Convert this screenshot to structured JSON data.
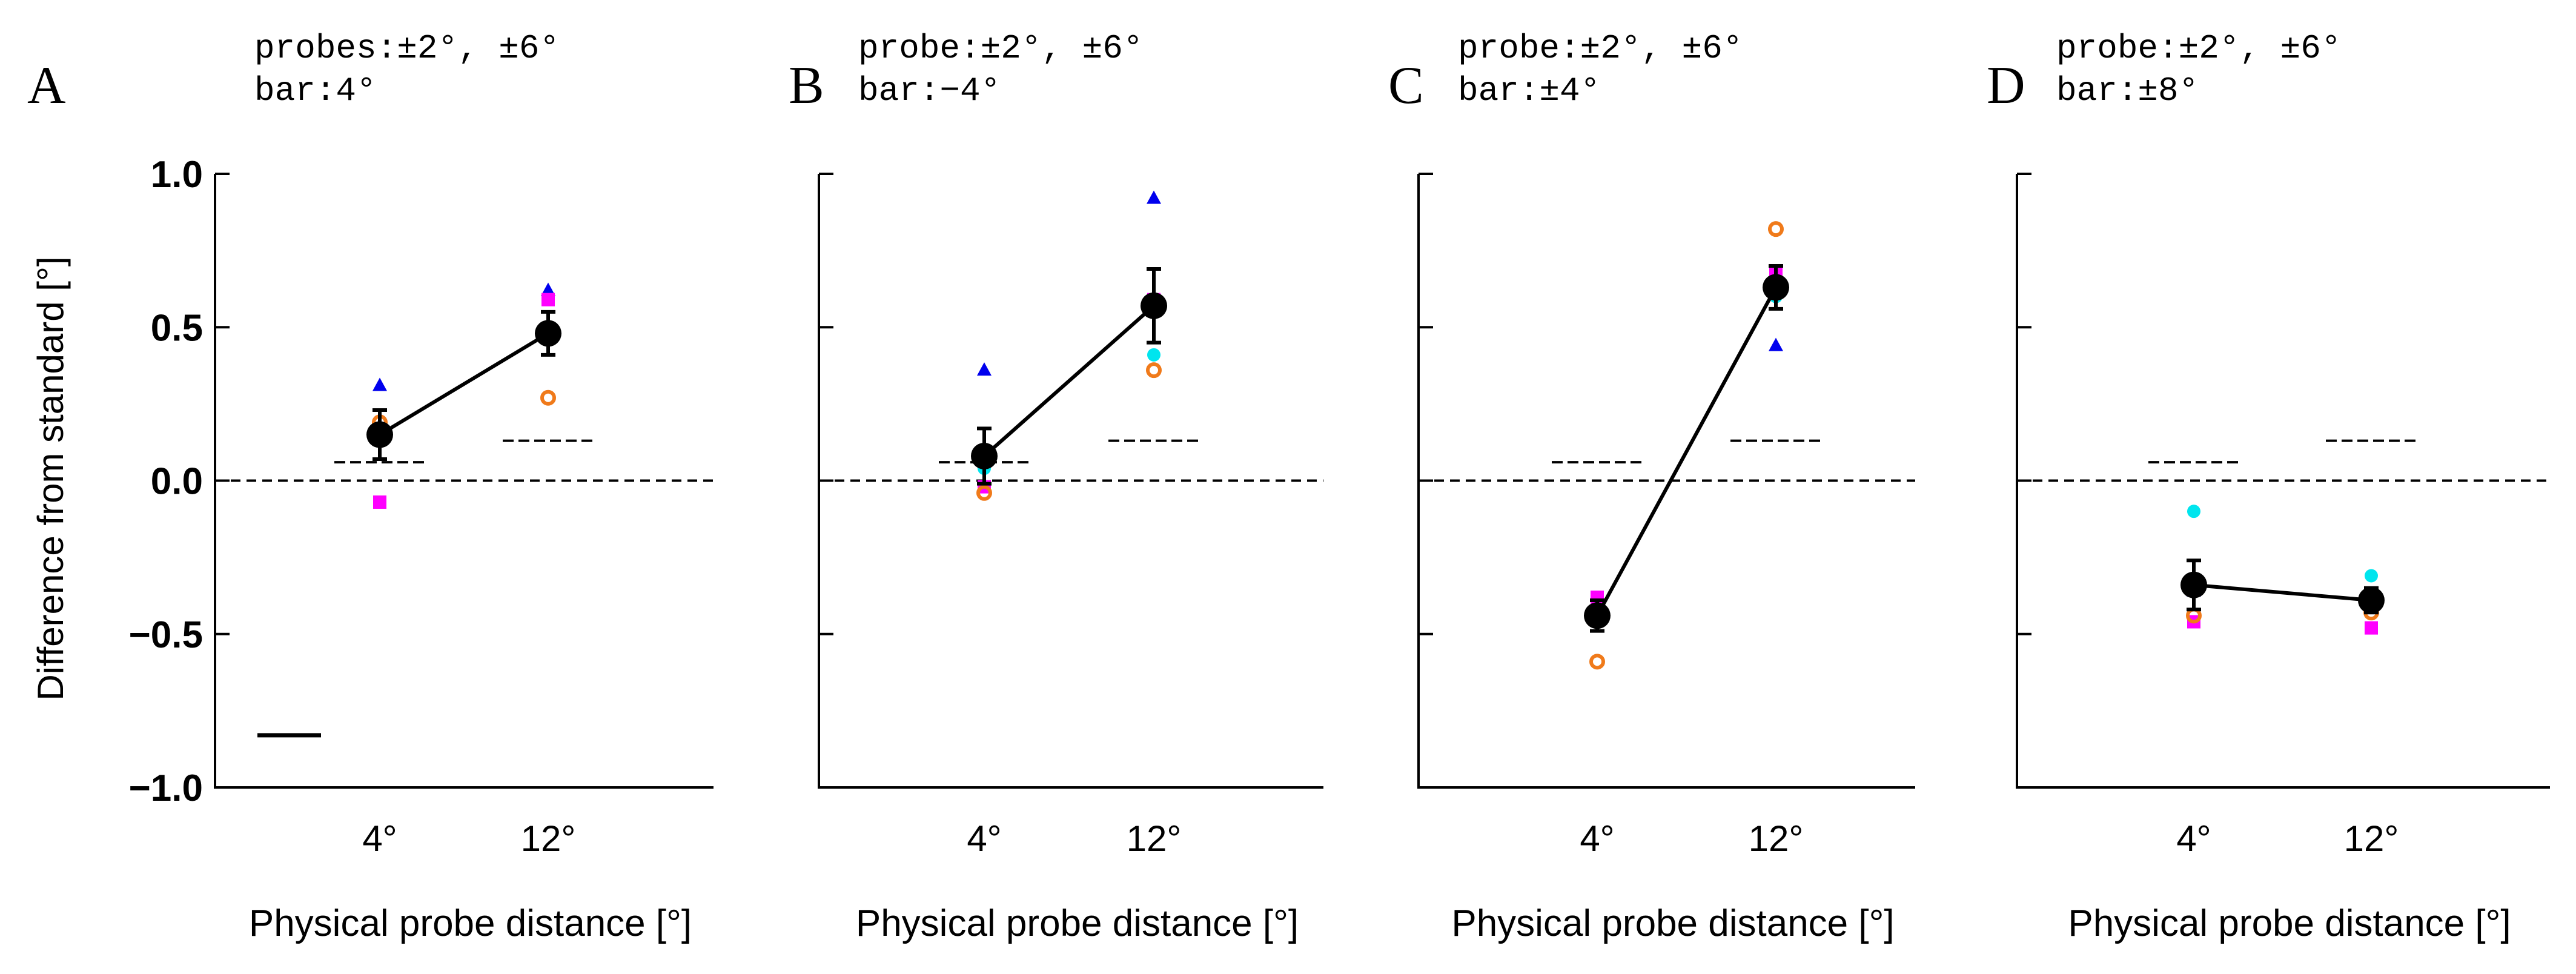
{
  "colors": {
    "mean": "#000000",
    "blue": "#0000ee",
    "cyan": "#00e5ee",
    "magenta": "#ff00ff",
    "orange": "#f07a1a",
    "axis": "#000000"
  },
  "y_axis": {
    "label": "Difference from standard [°]",
    "ticks": [
      1.0,
      0.5,
      0.0,
      -0.5,
      -1.0
    ],
    "tick_labels": [
      "1.0",
      "0.5",
      "0.0",
      "−0.5",
      "−1.0"
    ]
  },
  "chart_data": [
    {
      "type": "scatter",
      "panel": "A",
      "annotation": [
        "probes:±2°, ±6°",
        "bar:4°"
      ],
      "categories": [
        "4°",
        "12°"
      ],
      "xlabel": "Physical probe distance [°]",
      "ylabel": "Difference from standard [°]",
      "ylim": [
        -1.0,
        1.0
      ],
      "mean": [
        0.15,
        0.48
      ],
      "error": [
        0.08,
        0.07
      ],
      "reference": [
        0.06,
        0.13
      ],
      "series": [
        {
          "name": "blue triangle",
          "values": [
            0.31,
            0.62
          ]
        },
        {
          "name": "cyan circle",
          "values": [
            0.15,
            0.46
          ]
        },
        {
          "name": "magenta square",
          "values": [
            -0.07,
            0.59
          ]
        },
        {
          "name": "orange open circle",
          "values": [
            0.19,
            0.27
          ]
        }
      ],
      "scale_bar_y": -0.83
    },
    {
      "type": "scatter",
      "panel": "B",
      "annotation": [
        "probe:±2°, ±6°",
        "bar:−4°"
      ],
      "categories": [
        "4°",
        "12°"
      ],
      "xlabel": "Physical probe distance [°]",
      "ylabel": "",
      "ylim": [
        -1.0,
        1.0
      ],
      "mean": [
        0.08,
        0.57
      ],
      "error": [
        0.09,
        0.12
      ],
      "reference": [
        0.06,
        0.13
      ],
      "series": [
        {
          "name": "blue triangle",
          "values": [
            0.36,
            0.92
          ]
        },
        {
          "name": "cyan circle",
          "values": [
            0.04,
            0.41
          ]
        },
        {
          "name": "magenta square",
          "values": [
            -0.02,
            0.59
          ]
        },
        {
          "name": "orange open circle",
          "values": [
            -0.04,
            0.36
          ]
        }
      ]
    },
    {
      "type": "scatter",
      "panel": "C",
      "annotation": [
        "probe:±2°, ±6°",
        "bar:±4°"
      ],
      "categories": [
        "4°",
        "12°"
      ],
      "xlabel": "Physical probe distance [°]",
      "ylabel": "",
      "ylim": [
        -1.0,
        1.0
      ],
      "mean": [
        -0.44,
        0.63
      ],
      "error": [
        0.05,
        0.07
      ],
      "reference": [
        0.06,
        0.13
      ],
      "series": [
        {
          "name": "blue triangle",
          "values": [
            -0.41,
            0.44
          ]
        },
        {
          "name": "cyan circle",
          "values": [
            -0.39,
            0.6
          ]
        },
        {
          "name": "magenta square",
          "values": [
            -0.38,
            0.68
          ]
        },
        {
          "name": "orange open circle",
          "values": [
            -0.59,
            0.82
          ]
        }
      ]
    },
    {
      "type": "scatter",
      "panel": "D",
      "annotation": [
        "probe:±2°, ±6°",
        "bar:±8°"
      ],
      "categories": [
        "4°",
        "12°"
      ],
      "xlabel": "Physical probe distance [°]",
      "ylabel": "",
      "ylim": [
        -1.0,
        1.0
      ],
      "mean": [
        -0.34,
        -0.39
      ],
      "error": [
        0.08,
        0.04
      ],
      "reference": [
        0.06,
        0.13
      ],
      "series": [
        {
          "name": "blue triangle",
          "values": [
            -0.36,
            -0.38
          ]
        },
        {
          "name": "cyan circle",
          "values": [
            -0.1,
            -0.31
          ]
        },
        {
          "name": "magenta square",
          "values": [
            -0.46,
            -0.48
          ]
        },
        {
          "name": "orange open circle",
          "values": [
            -0.44,
            -0.43
          ]
        }
      ]
    }
  ]
}
